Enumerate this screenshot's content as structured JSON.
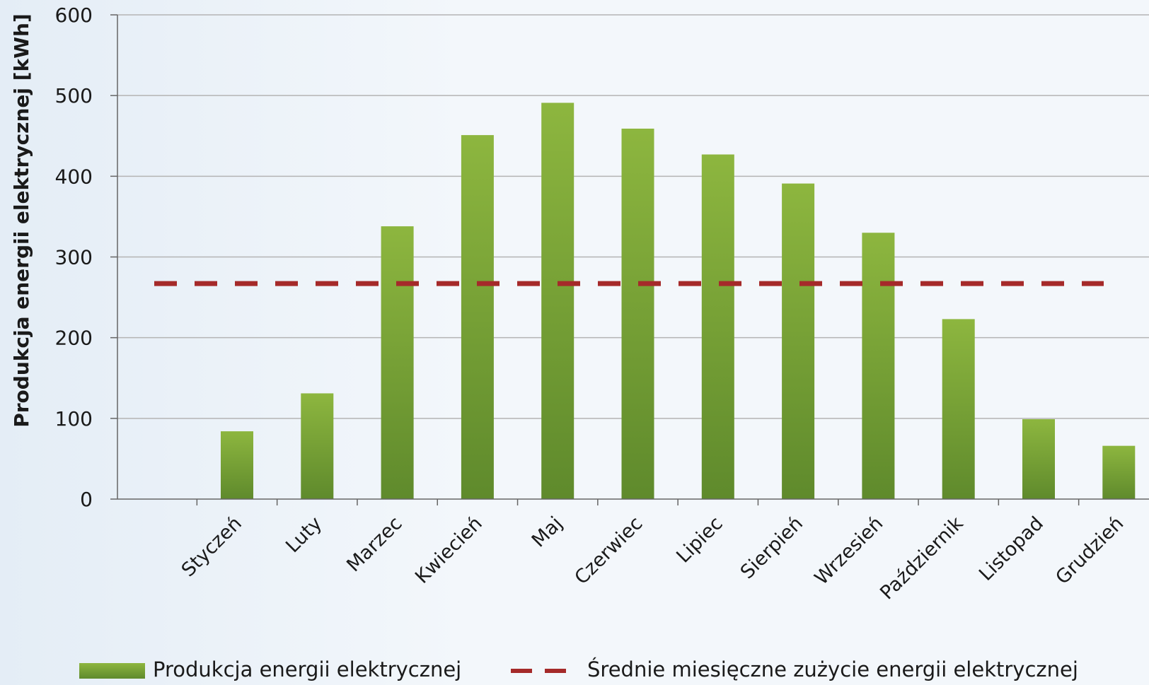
{
  "chart_data": {
    "type": "bar",
    "title": "",
    "xlabel": "",
    "ylabel": "Produkcja energii elektrycznej [kWh]",
    "ylim": [
      0,
      600
    ],
    "yticks": [
      0,
      100,
      200,
      300,
      400,
      500,
      600
    ],
    "grid": true,
    "legend_position": "bottom",
    "categories": [
      "Styczeń",
      "Luty",
      "Marzec",
      "Kwiecień",
      "Maj",
      "Czerwiec",
      "Lipiec",
      "Sierpień",
      "Wrzesień",
      "Październik",
      "Listopad",
      "Grudzień"
    ],
    "series": [
      {
        "name": "Produkcja energii elektrycznej",
        "type": "bar",
        "color": "#7aa33a",
        "values": [
          84,
          131,
          338,
          451,
          491,
          459,
          427,
          391,
          330,
          223,
          99,
          66
        ]
      },
      {
        "name": "Średnie miesięczne zużycie energii elektrycznej",
        "type": "line-dashed",
        "color": "#a52a2a",
        "value": 267
      }
    ]
  }
}
